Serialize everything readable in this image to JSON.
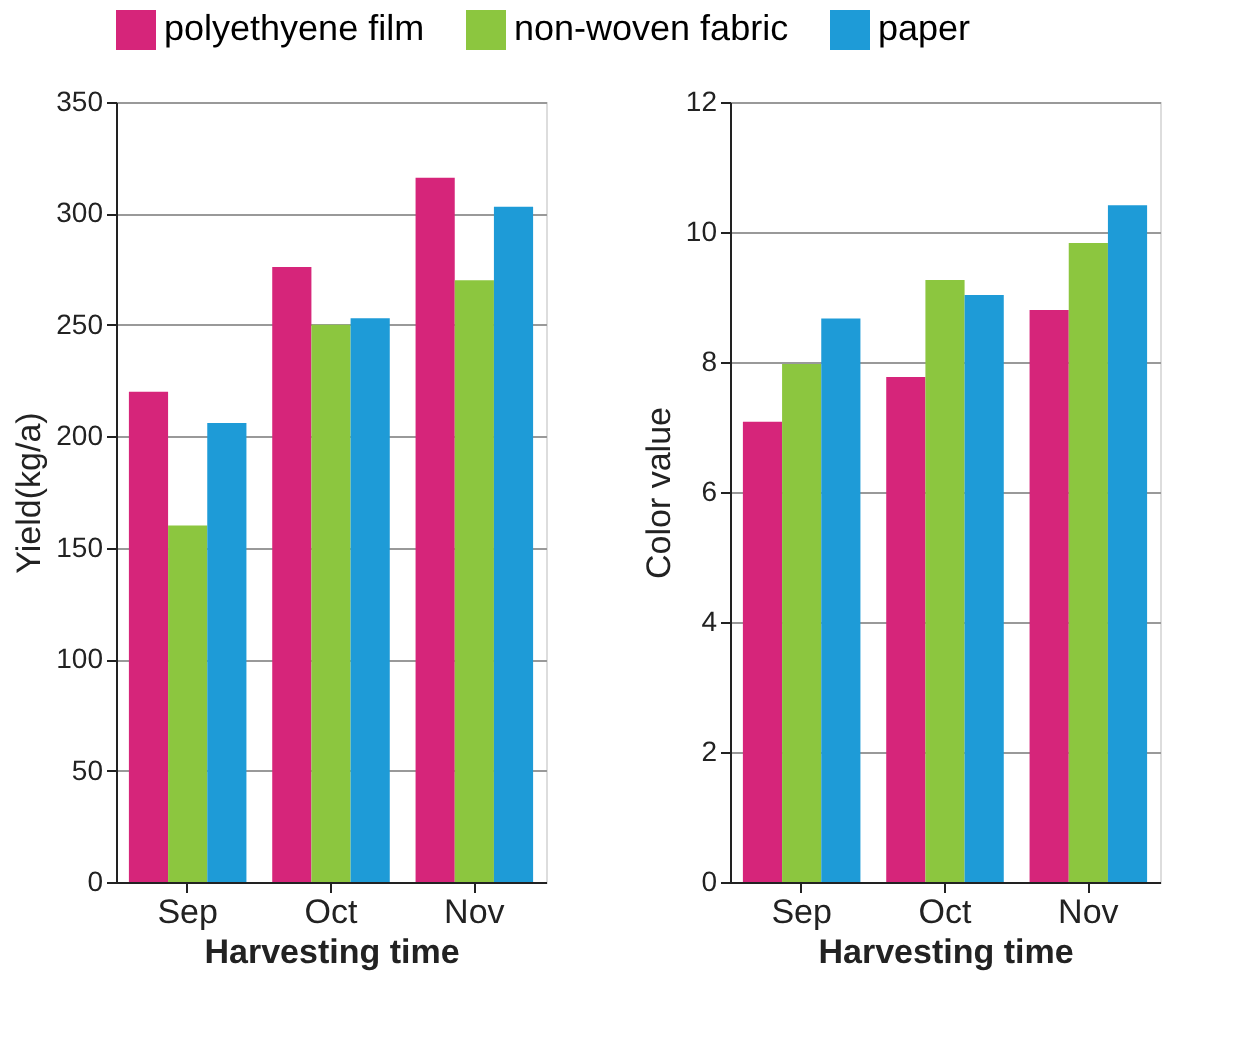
{
  "chart_data": [
    {
      "type": "bar",
      "categories": [
        "Sep",
        "Oct",
        "Nov"
      ],
      "xlabel": "Harvesting time",
      "ylabel": "Yield(kg/a)",
      "ylim": [
        0,
        350
      ],
      "yticks": [
        0,
        50,
        100,
        150,
        200,
        250,
        300,
        350
      ],
      "grid": "y",
      "legend": "top",
      "series": [
        {
          "name": "polyethyene film",
          "color": "#d6257a",
          "values": [
            220,
            276,
            316
          ]
        },
        {
          "name": "non-woven fabric",
          "color": "#8cc63f",
          "values": [
            160,
            250,
            270
          ]
        },
        {
          "name": "paper",
          "color": "#1e9bd7",
          "values": [
            206,
            253,
            303
          ]
        }
      ]
    },
    {
      "type": "bar",
      "categories": [
        "Sep",
        "Oct",
        "Nov"
      ],
      "xlabel": "Harvesting time",
      "ylabel": "Color value",
      "ylim": [
        0,
        12
      ],
      "yticks": [
        0,
        2,
        4,
        6,
        8,
        10,
        12
      ],
      "grid": "y",
      "legend": "top",
      "series": [
        {
          "name": "polyethyene film",
          "color": "#d6257a",
          "values": [
            7.08,
            7.77,
            8.8
          ]
        },
        {
          "name": "non-woven fabric",
          "color": "#8cc63f",
          "values": [
            7.97,
            9.26,
            9.83
          ]
        },
        {
          "name": "paper",
          "color": "#1e9bd7",
          "values": [
            8.67,
            9.03,
            10.41
          ]
        }
      ]
    }
  ]
}
